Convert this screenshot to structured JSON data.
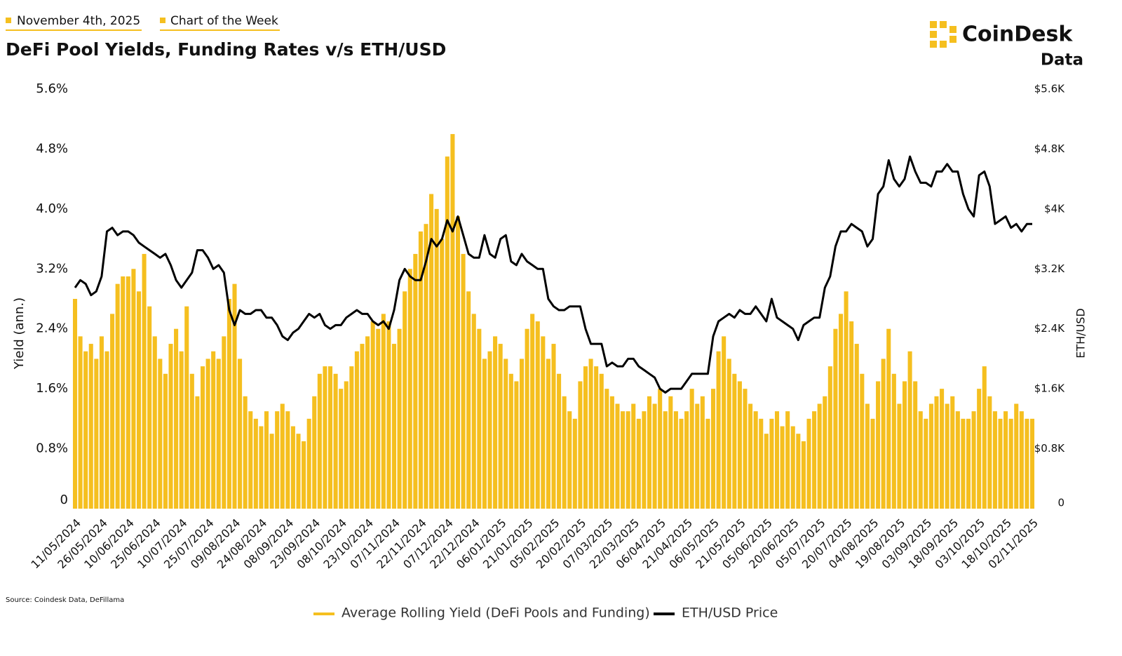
{
  "header": {
    "date": "November 4th, 2025",
    "tag": "Chart of the Week",
    "logo": "CoinDesk",
    "logo_sub": "Data"
  },
  "footer": {
    "source": "Source: Coindesk Data, DeFillama"
  },
  "chart_data": {
    "type": "bar",
    "title": "DeFi Pool Yields, Funding Rates v/s ETH/USD",
    "y_label": "Yield (ann.)",
    "y2_label": "ETH/USD",
    "categories": [
      "11/05/2024",
      null,
      null,
      null,
      null,
      "26/05/2024",
      null,
      null,
      null,
      null,
      "10/06/2024",
      null,
      null,
      null,
      null,
      "25/06/2024",
      null,
      null,
      null,
      null,
      "10/07/2024",
      null,
      null,
      null,
      null,
      "25/07/2024",
      null,
      null,
      null,
      null,
      "09/08/2024",
      null,
      null,
      null,
      null,
      "24/08/2024",
      null,
      null,
      null,
      null,
      "08/09/2024",
      null,
      null,
      null,
      null,
      "23/09/2024",
      null,
      null,
      null,
      null,
      "08/10/2024",
      null,
      null,
      null,
      null,
      "23/10/2024",
      null,
      null,
      null,
      null,
      "07/11/2024",
      null,
      null,
      null,
      null,
      "22/11/2024",
      null,
      null,
      null,
      null,
      "07/12/2024",
      null,
      null,
      null,
      null,
      "22/12/2024",
      null,
      null,
      null,
      null,
      "06/01/2025",
      null,
      null,
      null,
      null,
      "21/01/2025",
      null,
      null,
      null,
      null,
      "05/02/2025",
      null,
      null,
      null,
      null,
      "20/02/2025",
      null,
      null,
      null,
      null,
      "07/03/2025",
      null,
      null,
      null,
      null,
      "22/03/2025",
      null,
      null,
      null,
      null,
      "06/04/2025",
      null,
      null,
      null,
      null,
      "21/04/2025",
      null,
      null,
      null,
      null,
      "06/05/2025",
      null,
      null,
      null,
      null,
      "21/05/2025",
      null,
      null,
      null,
      null,
      "05/06/2025",
      null,
      null,
      null,
      null,
      "20/06/2025",
      null,
      null,
      null,
      null,
      "05/07/2025",
      null,
      null,
      null,
      null,
      "20/07/2025",
      null,
      null,
      null,
      null,
      "04/08/2025",
      null,
      null,
      null,
      null,
      "19/08/2025",
      null,
      null,
      null,
      null,
      "03/09/2025",
      null,
      null,
      null,
      null,
      "18/09/2025",
      null,
      null,
      null,
      null,
      "03/10/2025",
      null,
      null,
      null,
      null,
      "18/10/2025",
      null,
      null,
      null,
      null,
      "02/11/2025"
    ],
    "series": [
      {
        "name": "Average Rolling Yield (DeFi Pools and Funding)",
        "type": "bar",
        "color": "#f5bf1f",
        "values": [
          2.8,
          2.3,
          2.1,
          2.2,
          2.0,
          2.3,
          2.1,
          2.6,
          3.0,
          3.1,
          3.1,
          3.2,
          2.9,
          3.4,
          2.7,
          2.3,
          2.0,
          1.8,
          2.2,
          2.4,
          2.1,
          2.7,
          1.8,
          1.5,
          1.9,
          2.0,
          2.1,
          2.0,
          2.3,
          2.8,
          3.0,
          2.0,
          1.5,
          1.3,
          1.2,
          1.1,
          1.3,
          1.0,
          1.3,
          1.4,
          1.3,
          1.1,
          1.0,
          0.9,
          1.2,
          1.5,
          1.8,
          1.9,
          1.9,
          1.8,
          1.6,
          1.7,
          1.9,
          2.1,
          2.2,
          2.3,
          2.5,
          2.4,
          2.6,
          2.5,
          2.2,
          2.4,
          2.9,
          3.2,
          3.4,
          3.7,
          3.8,
          4.2,
          4.0,
          3.6,
          4.7,
          5.0,
          3.9,
          3.4,
          2.9,
          2.6,
          2.4,
          2.0,
          2.1,
          2.3,
          2.2,
          2.0,
          1.8,
          1.7,
          2.0,
          2.4,
          2.6,
          2.5,
          2.3,
          2.0,
          2.2,
          1.8,
          1.5,
          1.3,
          1.2,
          1.7,
          1.9,
          2.0,
          1.9,
          1.8,
          1.6,
          1.5,
          1.4,
          1.3,
          1.3,
          1.4,
          1.2,
          1.3,
          1.5,
          1.4,
          1.6,
          1.3,
          1.5,
          1.3,
          1.2,
          1.3,
          1.6,
          1.4,
          1.5,
          1.2,
          1.6,
          2.1,
          2.3,
          2.0,
          1.8,
          1.7,
          1.6,
          1.4,
          1.3,
          1.2,
          1.0,
          1.2,
          1.3,
          1.1,
          1.3,
          1.1,
          1.0,
          0.9,
          1.2,
          1.3,
          1.4,
          1.5,
          1.9,
          2.4,
          2.6,
          2.9,
          2.5,
          2.2,
          1.8,
          1.4,
          1.2,
          1.7,
          2.0,
          2.4,
          1.8,
          1.4,
          1.7,
          2.1,
          1.7,
          1.3,
          1.2,
          1.4,
          1.5,
          1.6,
          1.4,
          1.5,
          1.3,
          1.2,
          1.2,
          1.3,
          1.6,
          1.9,
          1.5,
          1.3,
          1.2,
          1.3,
          1.2,
          1.4,
          1.3,
          1.2,
          1.2
        ]
      },
      {
        "name": "ETH/USD Price",
        "type": "line",
        "axis": "y2",
        "color": "#000000",
        "values": [
          2950,
          3050,
          3000,
          2850,
          2900,
          3100,
          3700,
          3750,
          3650,
          3700,
          3700,
          3650,
          3550,
          3500,
          3450,
          3400,
          3350,
          3400,
          3250,
          3050,
          2950,
          3050,
          3150,
          3450,
          3450,
          3350,
          3200,
          3250,
          3150,
          2650,
          2450,
          2650,
          2600,
          2600,
          2650,
          2650,
          2550,
          2550,
          2450,
          2300,
          2250,
          2350,
          2400,
          2500,
          2600,
          2550,
          2600,
          2450,
          2400,
          2450,
          2450,
          2550,
          2600,
          2650,
          2600,
          2600,
          2500,
          2450,
          2500,
          2400,
          2650,
          3050,
          3200,
          3100,
          3050,
          3050,
          3300,
          3600,
          3500,
          3600,
          3850,
          3700,
          3900,
          3650,
          3400,
          3350,
          3350,
          3650,
          3400,
          3350,
          3600,
          3650,
          3300,
          3250,
          3400,
          3300,
          3250,
          3200,
          3200,
          2800,
          2700,
          2650,
          2650,
          2700,
          2700,
          2700,
          2400,
          2200,
          2200,
          2200,
          1900,
          1950,
          1900,
          1900,
          2000,
          2000,
          1900,
          1850,
          1800,
          1750,
          1600,
          1550,
          1600,
          1600,
          1600,
          1700,
          1800,
          1800,
          1800,
          1800,
          2300,
          2500,
          2550,
          2600,
          2550,
          2650,
          2600,
          2600,
          2700,
          2600,
          2500,
          2800,
          2550,
          2500,
          2450,
          2400,
          2250,
          2450,
          2500,
          2550,
          2550,
          2950,
          3100,
          3500,
          3700,
          3700,
          3800,
          3750,
          3700,
          3500,
          3600,
          4200,
          4300,
          4650,
          4400,
          4300,
          4400,
          4700,
          4500,
          4350,
          4350,
          4300,
          4500,
          4500,
          4600,
          4500,
          4500,
          4200,
          4000,
          3900,
          4450,
          4500,
          4300,
          3800,
          3850,
          3900,
          3750,
          3800,
          3700,
          3800,
          3800
        ]
      }
    ],
    "ylim": [
      0,
      5.6
    ],
    "yticks": [
      0,
      {
        "value": 0.8,
        "label": "0.8%"
      },
      {
        "value": 1.6,
        "label": "1.6%"
      },
      {
        "value": 2.4,
        "label": "2.4%"
      },
      {
        "value": 3.2,
        "label": "3.2%"
      },
      {
        "value": 4.0,
        "label": "4.0%"
      },
      {
        "value": 4.8,
        "label": "4.8%"
      },
      {
        "value": 5.6,
        "label": "5.6%"
      }
    ],
    "y2lim": [
      0,
      5600
    ],
    "y2ticks": [
      0,
      {
        "value": 800,
        "label": "$0.8K"
      },
      {
        "value": 1600,
        "label": "$1.6K"
      },
      {
        "value": 2400,
        "label": "$2.4K"
      },
      {
        "value": 3200,
        "label": "$3.2K"
      },
      {
        "value": 4000,
        "label": "$4K"
      },
      {
        "value": 4800,
        "label": "$4.8K"
      },
      {
        "value": 5600,
        "label": "$5.6K"
      }
    ],
    "grid": false,
    "legend": "bottom"
  }
}
